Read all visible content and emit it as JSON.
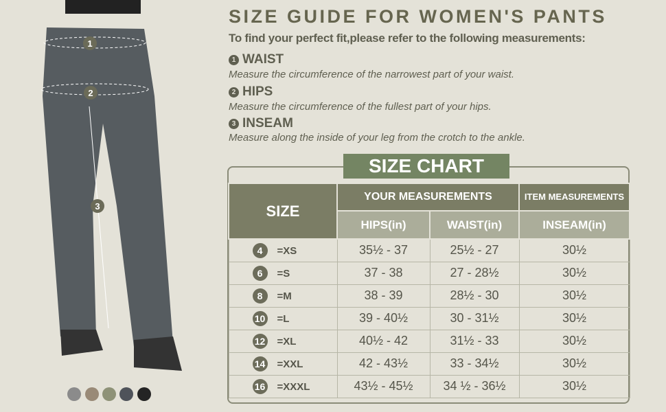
{
  "title": "SIZE GUIDE FOR WOMEN'S PANTS",
  "intro": "To find your perfect fit,please refer to the following measurements:",
  "sections": [
    {
      "num": "1",
      "label": "WAIST",
      "desc": "Measure the circumference of the narrowest part of your waist."
    },
    {
      "num": "2",
      "label": "HIPS",
      "desc": "Measure the circumference of the fullest part of your hips."
    },
    {
      "num": "3",
      "label": "INSEAM",
      "desc": "Measure along the inside of your leg from the crotch to the ankle."
    }
  ],
  "chart": {
    "title": "SIZE CHART",
    "size_header": "SIZE",
    "your_header": "YOUR MEASUREMENTS",
    "item_header": "ITEM MEASUREMENTS",
    "cols": [
      "HIPS(in)",
      "WAIST(in)",
      "INSEAM(in)"
    ],
    "rows": [
      {
        "num": "4",
        "size": "=XS",
        "hips": "35½ - 37",
        "waist": "25½ - 27",
        "inseam": "30½"
      },
      {
        "num": "6",
        "size": "=S",
        "hips": "37 - 38",
        "waist": "27 - 28½",
        "inseam": "30½"
      },
      {
        "num": "8",
        "size": "=M",
        "hips": "38 - 39",
        "waist": "28½ - 30",
        "inseam": "30½"
      },
      {
        "num": "10",
        "size": "=L",
        "hips": "39 - 40½",
        "waist": "30 - 31½",
        "inseam": "30½"
      },
      {
        "num": "12",
        "size": "=XL",
        "hips": "40½ - 42",
        "waist": "31½ - 33",
        "inseam": "30½"
      },
      {
        "num": "14",
        "size": "=XXL",
        "hips": "42 - 43½",
        "waist": "33 - 34½",
        "inseam": "30½"
      },
      {
        "num": "16",
        "size": "=XXXL",
        "hips": "43½ - 45½",
        "waist": "34 ½ - 36½",
        "inseam": "30½"
      }
    ]
  },
  "photo_markers": [
    "1",
    "2",
    "3"
  ],
  "swatches": [
    "#8b8b8b",
    "#998a77",
    "#8e9277",
    "#4f535a",
    "#242424"
  ]
}
